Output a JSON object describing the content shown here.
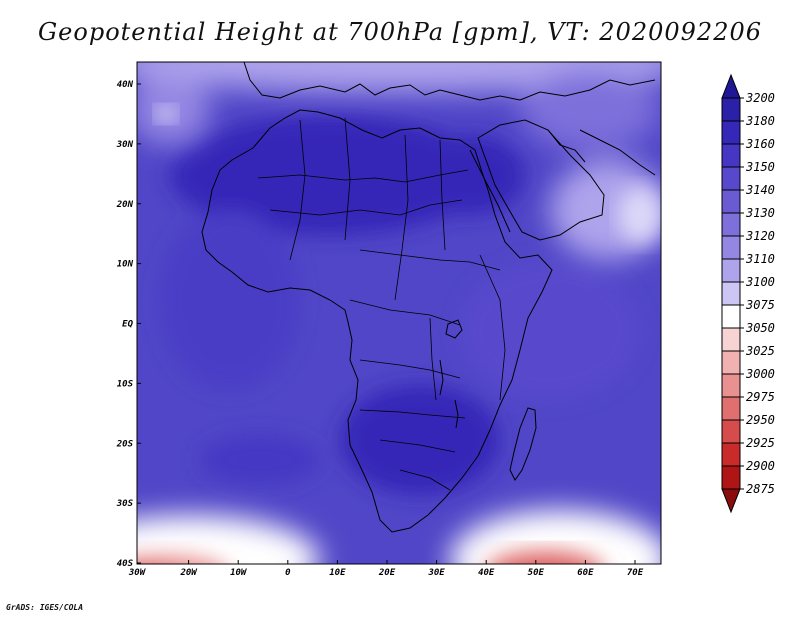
{
  "title": "Geopotential Height at 700hPa [gpm], VT: 2020092206",
  "credit": "GrADS: IGES/COLA",
  "axes": {
    "lat_ticks": [
      "40N",
      "30N",
      "20N",
      "10N",
      "EQ",
      "10S",
      "20S",
      "30S",
      "40S"
    ],
    "lon_ticks": [
      "30W",
      "20W",
      "10W",
      "0",
      "10E",
      "20E",
      "30E",
      "40E",
      "50E",
      "60E",
      "70E"
    ]
  },
  "colorbar": {
    "levels": [
      "3200",
      "3180",
      "3160",
      "3150",
      "3140",
      "3130",
      "3120",
      "3110",
      "3100",
      "3075",
      "3050",
      "3025",
      "3000",
      "2975",
      "2950",
      "2925",
      "2900",
      "2875"
    ],
    "colors": [
      "#1f1796",
      "#2a21a8",
      "#3528b8",
      "#4537c4",
      "#5849cc",
      "#6a5bd3",
      "#7d70db",
      "#9487e3",
      "#aea4ec",
      "#ccc6f4",
      "#ffffff",
      "#f8d3d3",
      "#f1b1b1",
      "#e99090",
      "#e06f6f",
      "#d64c4c",
      "#c92a2a",
      "#b01515",
      "#8a0d0d"
    ]
  }
}
